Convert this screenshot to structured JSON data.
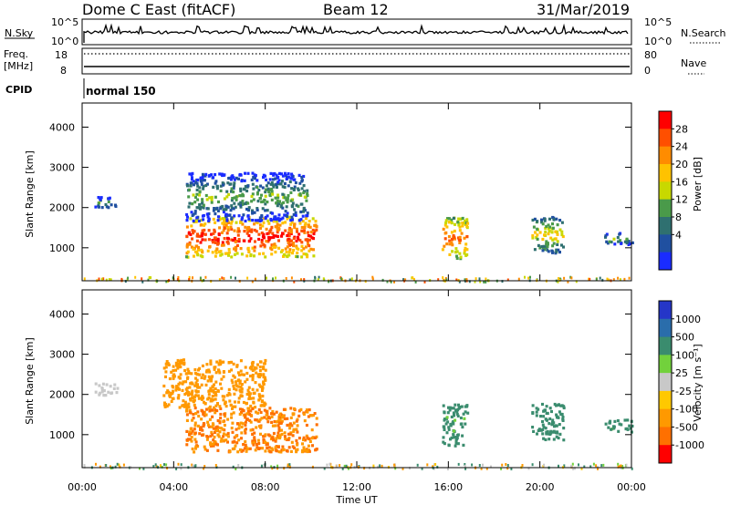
{
  "header": {
    "title": "Dome C East (fitACF)",
    "beam": "Beam 12",
    "date": "31/Mar/2019"
  },
  "sky_panel": {
    "left_label": "N.Sky",
    "right_label": "N.Search",
    "left_ticks": [
      "10^5",
      "10^0"
    ],
    "right_ticks": [
      "10^5",
      "10^0"
    ]
  },
  "freq_panel": {
    "label_line1": "Freq.",
    "label_line2": "[MHz]",
    "right_label": "Nave",
    "left_ticks": [
      "18",
      "8"
    ],
    "right_ticks": [
      "80",
      "0"
    ]
  },
  "cpid": {
    "label": "CPID",
    "value": "normal 150"
  },
  "x_axis": {
    "title": "Time UT",
    "ticks": [
      "00:00",
      "04:00",
      "08:00",
      "12:00",
      "16:00",
      "20:00",
      "00:00"
    ]
  },
  "power_panel": {
    "ylabel": "Slant Range [km]",
    "yticks": [
      "4000",
      "3000",
      "2000",
      "1000"
    ],
    "cbar_label": "Power [dB]",
    "cbar_ticks": [
      "28",
      "24",
      "20",
      "16",
      "12",
      "8",
      "4"
    ],
    "cbar_colors": [
      "#ff0000",
      "#ff4f00",
      "#ff8c00",
      "#ffc200",
      "#c8d800",
      "#4a9a4a",
      "#2f7070",
      "#2050a0",
      "#1a2cff"
    ]
  },
  "velocity_panel": {
    "ylabel": "Slant Range [km]",
    "yticks": [
      "4000",
      "3000",
      "2000",
      "1000"
    ],
    "cbar_label": "Velocity [m s⁻¹]",
    "cbar_ticks": [
      "1000",
      "500",
      "100",
      "25",
      "-25",
      "-100",
      "-500",
      "-1000"
    ],
    "cbar_colors": [
      "#2536c8",
      "#2a6dab",
      "#3a8c6e",
      "#72d13c",
      "#c8c8c8",
      "#ffc800",
      "#ff9900",
      "#ff7000",
      "#ff0000"
    ]
  },
  "chart_data": [
    {
      "type": "heatmap",
      "title": "Power",
      "x_range_hours": [
        0,
        24
      ],
      "y_range_km": [
        180,
        4600
      ],
      "value_unit": "dB",
      "regions": [
        {
          "t0": 4.5,
          "t1": 10.2,
          "r0": 800,
          "r1": 1800,
          "value": 28
        },
        {
          "t0": 4.5,
          "t1": 9.8,
          "r0": 1700,
          "r1": 2900,
          "value": 10
        },
        {
          "t0": 15.7,
          "t1": 16.8,
          "r0": 750,
          "r1": 1800,
          "value": 24
        },
        {
          "t0": 19.6,
          "t1": 21.0,
          "r0": 900,
          "r1": 1800,
          "value": 16
        },
        {
          "t0": 22.8,
          "t1": 24.0,
          "r0": 1100,
          "r1": 1400,
          "value": 10
        },
        {
          "t0": 0.5,
          "t1": 1.5,
          "r0": 2000,
          "r1": 2300,
          "value": 8
        }
      ]
    },
    {
      "type": "heatmap",
      "title": "Velocity",
      "x_range_hours": [
        0,
        24
      ],
      "y_range_km": [
        180,
        4600
      ],
      "value_unit": "m/s",
      "regions": [
        {
          "t0": 4.5,
          "t1": 10.2,
          "r0": 600,
          "r1": 1700,
          "value": -300
        },
        {
          "t0": 3.5,
          "t1": 8.0,
          "r0": 1700,
          "r1": 2900,
          "value": -150
        },
        {
          "t0": 15.7,
          "t1": 16.8,
          "r0": 750,
          "r1": 1800,
          "value": 100
        },
        {
          "t0": 19.6,
          "t1": 21.0,
          "r0": 900,
          "r1": 1800,
          "value": 200
        },
        {
          "t0": 22.8,
          "t1": 24.0,
          "r0": 1100,
          "r1": 1400,
          "value": 100
        },
        {
          "t0": 0.5,
          "t1": 1.5,
          "r0": 2000,
          "r1": 2300,
          "value": 0
        }
      ]
    }
  ]
}
